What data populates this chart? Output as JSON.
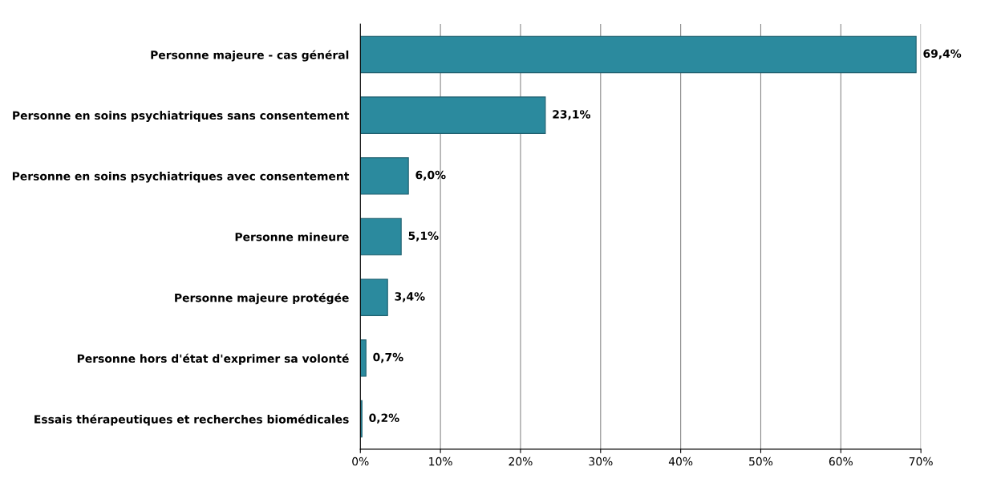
{
  "chart_data": {
    "type": "bar",
    "orientation": "horizontal",
    "categories": [
      "Personne majeure - cas général",
      "Personne en soins psychiatriques sans consentement",
      "Personne en soins psychiatriques avec consentement",
      "Personne mineure",
      "Personne majeure protégée",
      "Personne hors d'état d'exprimer sa volonté",
      "Essais thérapeutiques et recherches biomédicales"
    ],
    "values": [
      69.4,
      23.1,
      6.0,
      5.1,
      3.4,
      0.7,
      0.2
    ],
    "value_labels": [
      "69,4%",
      "23,1%",
      "6,0%",
      "5,1%",
      "3,4%",
      "0,7%",
      "0,2%"
    ],
    "color": "#2b8a9e",
    "xlim": [
      0,
      70
    ],
    "xticks": [
      {
        "value": 0,
        "label": "0%"
      },
      {
        "value": 10,
        "label": "10%"
      },
      {
        "value": 20,
        "label": "20%"
      },
      {
        "value": 30,
        "label": "30%"
      },
      {
        "value": 40,
        "label": "40%"
      },
      {
        "value": 50,
        "label": "50%"
      },
      {
        "value": 60,
        "label": "60%"
      },
      {
        "value": 70,
        "label": "70%"
      }
    ],
    "grid": "x",
    "legend": false
  }
}
